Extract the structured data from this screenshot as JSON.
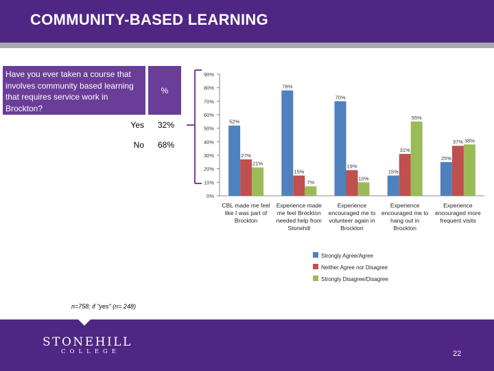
{
  "header": {
    "title": "COMMUNITY-BASED LEARNING"
  },
  "table": {
    "question": "Have you ever taken a course that involves community based learning that requires service work in Brockton?",
    "pct_header": "%",
    "rows": [
      {
        "label": "Yes",
        "value": "32%"
      },
      {
        "label": "No",
        "value": "68%"
      }
    ]
  },
  "note": "n=758; if \"yes\" (n= 248)",
  "footer": {
    "logo_main": "STONEHILL",
    "logo_sub": "COLLEGE",
    "page_number": "22"
  },
  "colors": {
    "brand_purple": "#4f2683",
    "bracket": "#7b3f98",
    "series_blue": "#4f81bd",
    "series_red": "#c0504d",
    "series_green": "#9bbb59"
  },
  "chart_data": {
    "type": "bar",
    "ylim": [
      0,
      90
    ],
    "yticks": [
      "0%",
      "10%",
      "20%",
      "30%",
      "40%",
      "50%",
      "60%",
      "70%",
      "80%",
      "90%"
    ],
    "categories": [
      [
        "CBL made me feel",
        "like I was part of",
        "Brockton"
      ],
      [
        "Experience made",
        "me feel Brockton",
        "needed help from",
        "Stonehill"
      ],
      [
        "Experience",
        "encouraged me to",
        "volunteer again in",
        "Brockton"
      ],
      [
        "Experience",
        "encouraged me to",
        "hang out in",
        "Brockton"
      ],
      [
        "Experience",
        "encouraged more",
        "frequent visits"
      ]
    ],
    "series": [
      {
        "name": "Strongly Agree/Agree",
        "color": "#4f81bd",
        "values": [
          52,
          78,
          70,
          15,
          25
        ]
      },
      {
        "name": "Neither Agree nor Disagree",
        "color": "#c0504d",
        "values": [
          27,
          15,
          19,
          31,
          37
        ]
      },
      {
        "name": "Strongly Disagree/Disagree",
        "color": "#9bbb59",
        "values": [
          21,
          7,
          10,
          55,
          38
        ]
      }
    ],
    "legend_position": "bottom-right"
  }
}
